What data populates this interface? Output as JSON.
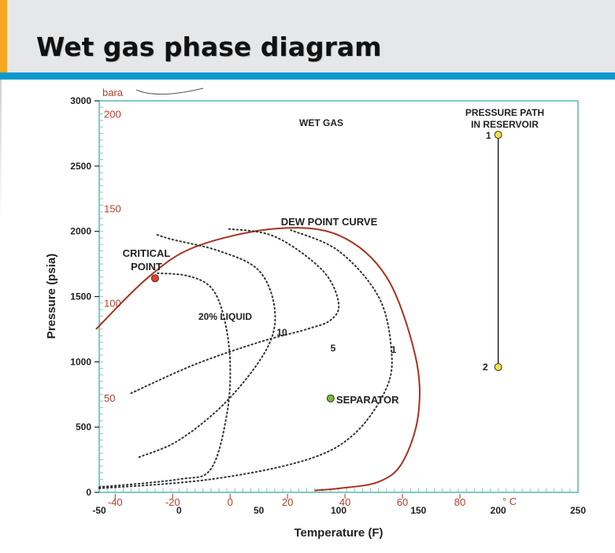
{
  "slide": {
    "title": "Wet gas phase diagram"
  },
  "axes": {
    "x_title": "Temperature (F)",
    "y_title": "Pressure (psia)",
    "x_ticks": [
      "-50",
      "0",
      "50",
      "100",
      "150",
      "200",
      "250"
    ],
    "y_ticks": [
      "0",
      "500",
      "1000",
      "1500",
      "2000",
      "2500",
      "3000"
    ],
    "c_unit": "° C",
    "c_ticks": [
      "-40",
      "-20",
      "0",
      "20",
      "40",
      "60",
      "80"
    ],
    "bara_unit": "bara",
    "bara_ticks": [
      "50",
      "100",
      "150",
      "200"
    ]
  },
  "labels": {
    "wet_gas": "WET GAS",
    "dew_point_curve": "DEW POINT CURVE",
    "critical_point_line1": "CRITICAL",
    "critical_point_line2": "POINT",
    "liquid_20": "20% LIQUID",
    "liquid_10": "10",
    "liquid_5": "5",
    "liquid_1": "1",
    "separator": "SEPARATOR",
    "pressure_path_line1": "PRESSURE PATH",
    "pressure_path_line2": "IN RESERVOIR",
    "path_point_1": "1",
    "path_point_2": "2"
  },
  "colors": {
    "curve": "#a8321f",
    "frame": "#7fcbbf",
    "critical_point": "#e5422b",
    "separator_point": "#7ab83a",
    "path_point": "#f2e040",
    "header_band": "#e6e7e9",
    "title_rule": "#0c98cc",
    "accent": "#f7a823"
  },
  "chart_data": {
    "type": "line",
    "title": "Wet gas phase diagram",
    "xlabel": "Temperature (F)",
    "ylabel": "Pressure (psia)",
    "xlim": [
      -50,
      250
    ],
    "ylim": [
      0,
      3000
    ],
    "secondary_x_unit": "° C",
    "secondary_x_ticks": [
      -40,
      -20,
      0,
      20,
      40,
      60,
      80
    ],
    "secondary_y_unit": "bara",
    "secondary_y_ticks": [
      50,
      100,
      150,
      200
    ],
    "series": [
      {
        "name": "DEW POINT CURVE",
        "style": "solid",
        "x": [
          -52,
          -20,
          10,
          60,
          100,
          130,
          148,
          150,
          140,
          125,
          100,
          85
        ],
        "y": [
          1250,
          1640,
          1880,
          2020,
          1970,
          1650,
          1050,
          600,
          230,
          80,
          30,
          15
        ]
      },
      {
        "name": "20% LIQUID",
        "style": "dotted",
        "x": [
          -50,
          0,
          20,
          30,
          32,
          28,
          20,
          5,
          -15
        ],
        "y": [
          40,
          100,
          180,
          600,
          1000,
          1350,
          1570,
          1660,
          1680
        ]
      },
      {
        "name": "10",
        "style": "dotted",
        "x": [
          -25,
          0,
          30,
          55,
          60,
          50,
          25,
          -5,
          -15
        ],
        "y": [
          270,
          400,
          700,
          1100,
          1400,
          1700,
          1850,
          1940,
          1980
        ]
      },
      {
        "name": "5",
        "style": "dotted",
        "x": [
          -30,
          10,
          50,
          80,
          95,
          100,
          90,
          60,
          30
        ],
        "y": [
          760,
          980,
          1150,
          1250,
          1320,
          1450,
          1700,
          1960,
          2020
        ]
      },
      {
        "name": "1",
        "style": "dotted",
        "x": [
          -50,
          20,
          80,
          110,
          130,
          133,
          125,
          100,
          70
        ],
        "y": [
          30,
          100,
          250,
          450,
          800,
          1100,
          1500,
          1850,
          2010
        ]
      }
    ],
    "points": [
      {
        "label": "CRITICAL POINT",
        "x": -15,
        "y": 1640
      },
      {
        "label": "SEPARATOR",
        "x": 95,
        "y": 720
      },
      {
        "label": "1",
        "x": 200,
        "y": 2740
      },
      {
        "label": "2",
        "x": 200,
        "y": 960
      }
    ]
  }
}
